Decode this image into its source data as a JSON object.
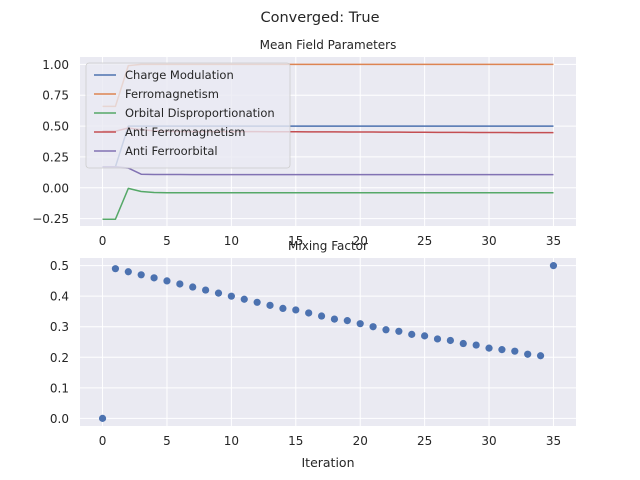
{
  "figure": {
    "suptitle": "Converged: True"
  },
  "chart_data": [
    {
      "type": "line",
      "title": "Mean Field Parameters",
      "xlabel": "",
      "ylabel": "",
      "xlim": [
        -1.75,
        36.75
      ],
      "ylim": [
        -0.31,
        1.06
      ],
      "xticks": [
        0,
        5,
        10,
        15,
        20,
        25,
        30,
        35
      ],
      "xtick_labels": [
        "0",
        "5",
        "10",
        "15",
        "20",
        "25",
        "30",
        "35"
      ],
      "yticks": [
        1.0,
        0.75,
        0.5,
        0.25,
        0.0,
        -0.25
      ],
      "ytick_labels": [
        "1.00",
        "0.75",
        "0.50",
        "0.25",
        "0.00",
        "−0.25"
      ],
      "grid": true,
      "legend_position": "upper left",
      "x": [
        0,
        1,
        2,
        3,
        4,
        5,
        6,
        7,
        8,
        9,
        10,
        11,
        12,
        13,
        14,
        15,
        16,
        17,
        18,
        19,
        20,
        21,
        22,
        23,
        24,
        25,
        26,
        27,
        28,
        29,
        30,
        31,
        32,
        33,
        34,
        35
      ],
      "series": [
        {
          "name": "Charge Modulation",
          "color": "#4c72b0",
          "values": [
            0.17,
            0.17,
            0.5,
            0.5,
            0.5,
            0.5,
            0.5,
            0.5,
            0.5,
            0.5,
            0.5,
            0.5,
            0.5,
            0.5,
            0.5,
            0.5,
            0.5,
            0.5,
            0.5,
            0.5,
            0.5,
            0.5,
            0.5,
            0.5,
            0.5,
            0.5,
            0.5,
            0.5,
            0.5,
            0.5,
            0.5,
            0.5,
            0.5,
            0.5,
            0.5,
            0.5
          ]
        },
        {
          "name": "Ferromagnetism",
          "color": "#dd8452",
          "values": [
            0.66,
            0.66,
            0.99,
            1.0,
            1.0,
            1.0,
            1.0,
            1.0,
            1.0,
            1.0,
            1.0,
            1.0,
            1.0,
            1.0,
            1.0,
            1.0,
            1.0,
            1.0,
            1.0,
            1.0,
            1.0,
            1.0,
            1.0,
            1.0,
            1.0,
            1.0,
            1.0,
            1.0,
            1.0,
            1.0,
            1.0,
            1.0,
            1.0,
            1.0,
            1.0,
            1.0
          ]
        },
        {
          "name": "Orbital Disproportionation",
          "color": "#55a868",
          "values": [
            -0.255,
            -0.255,
            -0.005,
            -0.03,
            -0.038,
            -0.04,
            -0.04,
            -0.04,
            -0.04,
            -0.04,
            -0.04,
            -0.04,
            -0.04,
            -0.04,
            -0.04,
            -0.04,
            -0.04,
            -0.04,
            -0.04,
            -0.04,
            -0.04,
            -0.04,
            -0.04,
            -0.04,
            -0.04,
            -0.04,
            -0.04,
            -0.04,
            -0.04,
            -0.04,
            -0.04,
            -0.04,
            -0.04,
            -0.04,
            -0.04,
            -0.04
          ]
        },
        {
          "name": "Anti Ferromagnetism",
          "color": "#c44e52",
          "values": [
            0.458,
            0.458,
            0.485,
            0.47,
            0.462,
            0.458,
            0.456,
            0.455,
            0.455,
            0.455,
            0.455,
            0.455,
            0.455,
            0.454,
            0.454,
            0.454,
            0.453,
            0.453,
            0.453,
            0.452,
            0.452,
            0.452,
            0.451,
            0.451,
            0.45,
            0.45,
            0.449,
            0.449,
            0.449,
            0.448,
            0.448,
            0.448,
            0.447,
            0.447,
            0.447,
            0.447
          ]
        },
        {
          "name": "Anti Ferroorbital",
          "color": "#8172b3",
          "values": [
            0.17,
            0.17,
            0.16,
            0.11,
            0.108,
            0.107,
            0.107,
            0.106,
            0.106,
            0.106,
            0.106,
            0.106,
            0.106,
            0.106,
            0.106,
            0.106,
            0.106,
            0.106,
            0.106,
            0.106,
            0.106,
            0.106,
            0.106,
            0.106,
            0.106,
            0.106,
            0.106,
            0.106,
            0.106,
            0.106,
            0.106,
            0.106,
            0.106,
            0.106,
            0.106,
            0.106
          ]
        }
      ]
    },
    {
      "type": "scatter",
      "title": "Mixing Factor",
      "xlabel": "Iteration",
      "ylabel": "",
      "xlim": [
        -1.75,
        36.75
      ],
      "ylim": [
        -0.025,
        0.525
      ],
      "xticks": [
        0,
        5,
        10,
        15,
        20,
        25,
        30,
        35
      ],
      "xtick_labels": [
        "0",
        "5",
        "10",
        "15",
        "20",
        "25",
        "30",
        "35"
      ],
      "yticks": [
        0.5,
        0.4,
        0.3,
        0.2,
        0.1,
        0.0
      ],
      "ytick_labels": [
        "0.5",
        "0.4",
        "0.3",
        "0.2",
        "0.1",
        "0.0"
      ],
      "grid": true,
      "color": "#4c72b0",
      "x": [
        0,
        1,
        2,
        3,
        4,
        5,
        6,
        7,
        8,
        9,
        10,
        11,
        12,
        13,
        14,
        15,
        16,
        17,
        18,
        19,
        20,
        21,
        22,
        23,
        24,
        25,
        26,
        27,
        28,
        29,
        30,
        31,
        32,
        33,
        34,
        35
      ],
      "y": [
        0.0,
        0.49,
        0.48,
        0.47,
        0.46,
        0.45,
        0.44,
        0.43,
        0.42,
        0.41,
        0.4,
        0.39,
        0.38,
        0.37,
        0.36,
        0.355,
        0.345,
        0.335,
        0.325,
        0.32,
        0.31,
        0.3,
        0.29,
        0.285,
        0.275,
        0.27,
        0.26,
        0.255,
        0.245,
        0.24,
        0.23,
        0.225,
        0.22,
        0.21,
        0.205,
        0.5
      ]
    }
  ]
}
